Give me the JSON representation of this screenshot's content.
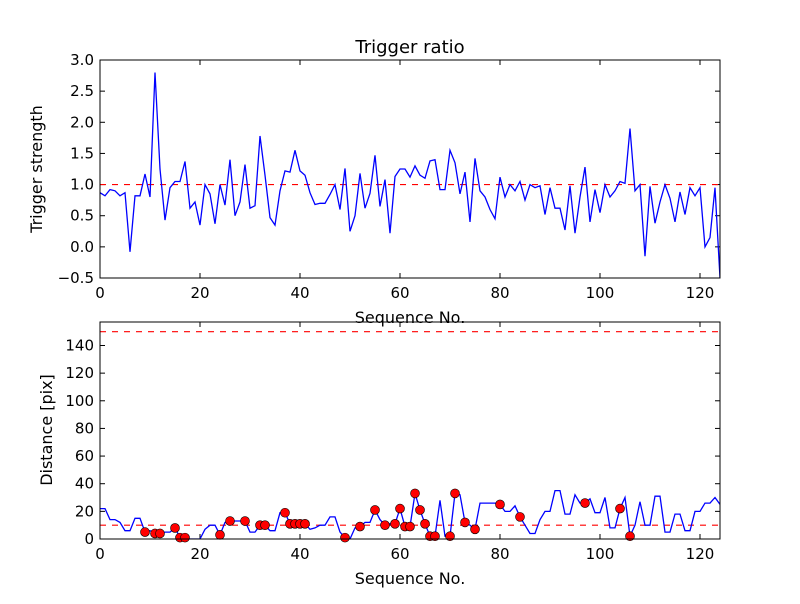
{
  "chart_data": [
    {
      "type": "line",
      "title": "Trigger ratio",
      "xlabel": "Sequence No.",
      "ylabel": "Trigger strength",
      "xlim": [
        0,
        124
      ],
      "ylim": [
        -0.5,
        3.0
      ],
      "xticks": [
        "0",
        "20",
        "40",
        "60",
        "80",
        "100",
        "120"
      ],
      "yticks": [
        "−0.5",
        "0.0",
        "0.5",
        "1.0",
        "1.5",
        "2.0",
        "2.5",
        "3.0"
      ],
      "threshold": 1.0,
      "series": [
        {
          "name": "trigger strength",
          "color": "#0000ff",
          "values": [
            0.87,
            0.82,
            0.92,
            0.9,
            0.82,
            0.87,
            -0.08,
            0.82,
            0.82,
            1.17,
            0.8,
            2.8,
            1.25,
            0.43,
            0.95,
            1.05,
            1.05,
            1.37,
            0.62,
            0.72,
            0.35,
            1.0,
            0.85,
            0.37,
            1.0,
            0.67,
            1.4,
            0.5,
            0.72,
            1.32,
            0.62,
            0.66,
            1.78,
            1.15,
            0.47,
            0.35,
            0.9,
            1.22,
            1.2,
            1.55,
            1.22,
            1.15,
            0.87,
            0.68,
            0.7,
            0.7,
            0.84,
            1.0,
            0.6,
            1.26,
            0.25,
            0.5,
            1.18,
            0.62,
            0.86,
            1.47,
            0.65,
            1.08,
            0.22,
            1.13,
            1.25,
            1.25,
            1.12,
            1.3,
            1.15,
            1.1,
            1.38,
            1.4,
            0.92,
            0.92,
            1.55,
            1.35,
            0.85,
            1.2,
            0.4,
            1.42,
            0.9,
            0.8,
            0.6,
            0.45,
            1.12,
            0.8,
            1.0,
            0.9,
            1.05,
            0.75,
            1.0,
            0.95,
            0.98,
            0.52,
            0.95,
            0.62,
            0.62,
            0.27,
            0.98,
            0.22,
            0.8,
            1.28,
            0.4,
            0.92,
            0.55,
            1.0,
            0.8,
            0.9,
            1.05,
            1.02,
            1.9,
            0.9,
            1.0,
            -0.15,
            0.97,
            0.38,
            0.72,
            1.0,
            0.78,
            0.4,
            0.88,
            0.52,
            0.95,
            0.82,
            0.95,
            0.0,
            0.15,
            0.95,
            -0.5
          ]
        }
      ],
      "threshold_color": "#ff0000"
    },
    {
      "type": "line",
      "title": "",
      "xlabel": "Sequence No.",
      "ylabel": "Distance [pix]",
      "xlim": [
        0,
        124
      ],
      "ylim": [
        0,
        157
      ],
      "xticks": [
        "0",
        "20",
        "40",
        "60",
        "80",
        "100",
        "120"
      ],
      "yticks": [
        "0",
        "20",
        "40",
        "60",
        "80",
        "100",
        "120",
        "140"
      ],
      "thresholds": [
        10,
        150
      ],
      "series": [
        {
          "name": "distance",
          "color": "#0000ff",
          "values": [
            22,
            22,
            14,
            14,
            12,
            6,
            6,
            15,
            15,
            5,
            6,
            4,
            4,
            5,
            5,
            8,
            1,
            1,
            0,
            0,
            0,
            7,
            10,
            10,
            3,
            12,
            13,
            13,
            13,
            13,
            5,
            5,
            10,
            10,
            6,
            6,
            19,
            19,
            11,
            11,
            11,
            11,
            7,
            8,
            10,
            10,
            16,
            16,
            5,
            1,
            0,
            8,
            9,
            12,
            12,
            21,
            14,
            10,
            11,
            11,
            22,
            9,
            9,
            33,
            21,
            11,
            2,
            2,
            28,
            2,
            2,
            33,
            32,
            12,
            10,
            7,
            26,
            26,
            26,
            26,
            25,
            20,
            20,
            24,
            16,
            10,
            4,
            4,
            14,
            20,
            20,
            35,
            35,
            18,
            18,
            32,
            26,
            26,
            29,
            19,
            19,
            30,
            8,
            8,
            22,
            30,
            2,
            10,
            27,
            10,
            10,
            31,
            31,
            5,
            5,
            18,
            18,
            6,
            6,
            20,
            20,
            26,
            26,
            30,
            25
          ]
        },
        {
          "name": "flagged",
          "color": "#ff0000",
          "marker": "circle",
          "x": [
            9,
            11,
            12,
            15,
            16,
            17,
            24,
            26,
            29,
            32,
            33,
            37,
            38,
            39,
            40,
            41,
            49,
            52,
            55,
            57,
            59,
            60,
            61,
            62,
            63,
            64,
            65,
            66,
            67,
            70,
            71,
            73,
            75,
            80,
            84,
            97,
            104,
            106
          ]
        }
      ],
      "threshold_color": "#ff0000"
    }
  ]
}
